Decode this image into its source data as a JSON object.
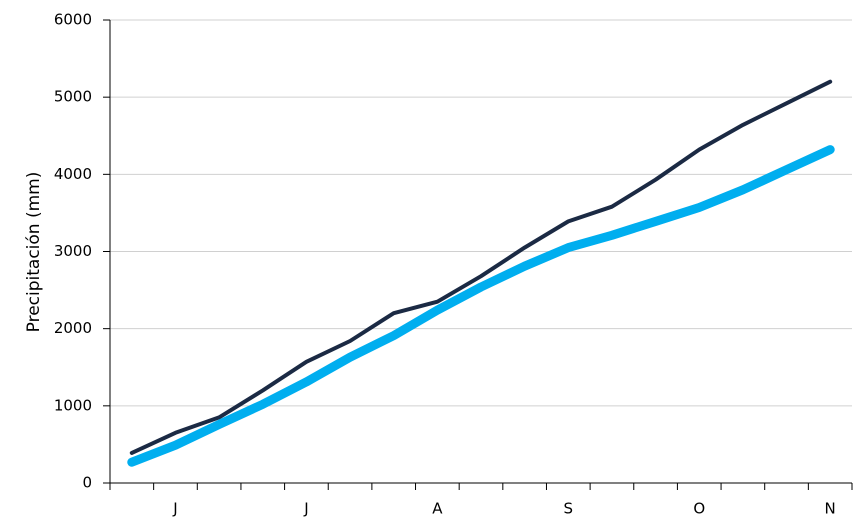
{
  "chart_data": {
    "type": "line",
    "y_label": "Precipitación (mm)",
    "categories": [
      null,
      "J",
      null,
      null,
      "J",
      null,
      null,
      "A",
      null,
      null,
      "S",
      null,
      null,
      "O",
      null,
      null,
      "N"
    ],
    "series": [
      {
        "color": "#1b2a44",
        "width": 4,
        "values": [
          390,
          650,
          850,
          1200,
          1570,
          1840,
          2200,
          2350,
          2680,
          3050,
          3390,
          3580,
          3930,
          4320,
          4640,
          4920,
          5200
        ]
      },
      {
        "color": "#00aeef",
        "width": 9,
        "values": [
          270,
          490,
          760,
          1020,
          1310,
          1630,
          1910,
          2240,
          2540,
          2810,
          3050,
          3210,
          3390,
          3570,
          3800,
          4060,
          4320
        ]
      }
    ],
    "ylim": [
      0,
      6000
    ],
    "yticks": [
      0,
      1000,
      2000,
      3000,
      4000,
      5000,
      6000
    ],
    "grid": true
  }
}
